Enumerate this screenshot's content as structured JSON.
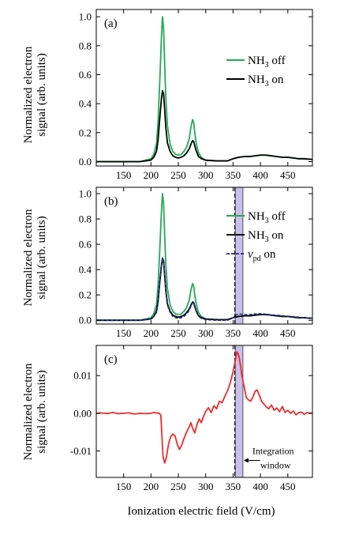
{
  "figure": {
    "xlabel": "Ionization electric field (V/cm)",
    "ylabel_line1": "Normalized electron",
    "ylabel_line2": "signal (arb. units)"
  },
  "colors": {
    "nh3_off": "#22aa55",
    "nh3_on": "#000000",
    "vpd_on": "#2a2a8c",
    "difference": "#ee2c2c",
    "window_fill": "#c8c0ea",
    "window_line": "#333333"
  },
  "chart_data": [
    {
      "type": "line",
      "panel_label": "(a)",
      "xlim": [
        100,
        495
      ],
      "ylim": [
        -0.03,
        1.05
      ],
      "x_ticks": [
        150,
        200,
        250,
        300,
        350,
        400,
        450
      ],
      "x_tick_labels": [
        "150",
        "200",
        "250",
        "300",
        "350",
        "400",
        "450"
      ],
      "y_ticks": [
        0.0,
        0.2,
        0.4,
        0.6,
        0.8,
        1.0
      ],
      "y_tick_labels": [
        "0.0",
        "0.2",
        "0.4",
        "0.6",
        "0.8",
        "1.0"
      ],
      "legend_position": "top-right",
      "series": [
        {
          "name": "NH3 off",
          "name_main": "NH",
          "name_sub": "3",
          "name_tail": " off",
          "color": "#22aa55",
          "x": [
            100,
            180,
            200,
            205,
            210,
            213,
            216,
            219,
            221,
            223,
            225,
            227,
            230,
            235,
            240,
            245,
            250,
            255,
            260,
            265,
            270,
            273,
            276,
            278,
            280,
            283,
            287,
            292,
            300,
            320,
            340,
            350,
            360,
            370,
            380,
            390,
            400,
            410,
            420,
            430,
            440,
            450,
            460,
            470,
            480,
            495
          ],
          "y": [
            0.0,
            0.0,
            0.02,
            0.05,
            0.12,
            0.28,
            0.55,
            0.85,
            1.0,
            0.92,
            0.68,
            0.45,
            0.25,
            0.12,
            0.07,
            0.05,
            0.045,
            0.05,
            0.07,
            0.1,
            0.16,
            0.24,
            0.29,
            0.27,
            0.2,
            0.12,
            0.06,
            0.03,
            0.01,
            0.005,
            0.005,
            0.02,
            0.03,
            0.035,
            0.035,
            0.04,
            0.045,
            0.045,
            0.04,
            0.035,
            0.03,
            0.03,
            0.025,
            0.02,
            0.02,
            0.015
          ]
        },
        {
          "name": "NH3 on",
          "name_main": "NH",
          "name_sub": "3",
          "name_tail": " on",
          "color": "#000000",
          "x": [
            100,
            180,
            200,
            205,
            210,
            213,
            216,
            219,
            221,
            223,
            225,
            227,
            230,
            235,
            240,
            245,
            250,
            255,
            260,
            265,
            270,
            273,
            276,
            278,
            280,
            283,
            287,
            292,
            300,
            320,
            340,
            350,
            360,
            370,
            380,
            390,
            400,
            410,
            420,
            430,
            440,
            450,
            460,
            470,
            480,
            495
          ],
          "y": [
            0.0,
            0.0,
            0.01,
            0.03,
            0.07,
            0.15,
            0.3,
            0.43,
            0.49,
            0.47,
            0.36,
            0.24,
            0.13,
            0.07,
            0.04,
            0.03,
            0.025,
            0.03,
            0.04,
            0.06,
            0.09,
            0.12,
            0.145,
            0.14,
            0.11,
            0.07,
            0.035,
            0.02,
            0.01,
            0.005,
            0.005,
            0.02,
            0.03,
            0.035,
            0.035,
            0.04,
            0.045,
            0.045,
            0.04,
            0.035,
            0.03,
            0.03,
            0.025,
            0.02,
            0.02,
            0.015
          ]
        }
      ]
    },
    {
      "type": "line",
      "panel_label": "(b)",
      "xlim": [
        100,
        495
      ],
      "ylim": [
        -0.03,
        1.05
      ],
      "x_ticks": [
        150,
        200,
        250,
        300,
        350,
        400,
        450
      ],
      "x_tick_labels": [
        "150",
        "200",
        "250",
        "300",
        "350",
        "400",
        "450"
      ],
      "y_ticks": [
        0.0,
        0.2,
        0.4,
        0.6,
        0.8,
        1.0
      ],
      "y_tick_labels": [
        "0.0",
        "0.2",
        "0.4",
        "0.6",
        "0.8",
        "1.0"
      ],
      "legend_position": "right",
      "window": {
        "x_start": 354,
        "x_end": 368,
        "dashed_line_x": 353
      },
      "series": [
        {
          "name": "NH3 off",
          "name_main": "NH",
          "name_sub": "3",
          "name_tail": " off",
          "color": "#22aa55",
          "dashed": false,
          "x": [
            100,
            180,
            200,
            205,
            210,
            213,
            216,
            219,
            221,
            223,
            225,
            227,
            230,
            235,
            240,
            245,
            250,
            255,
            260,
            265,
            270,
            273,
            276,
            278,
            280,
            283,
            287,
            292,
            300,
            320,
            340,
            350,
            360,
            370,
            380,
            390,
            400,
            410,
            420,
            430,
            440,
            450,
            460,
            470,
            480,
            495
          ],
          "y": [
            0.0,
            0.0,
            0.02,
            0.05,
            0.12,
            0.28,
            0.55,
            0.85,
            1.0,
            0.92,
            0.68,
            0.45,
            0.25,
            0.12,
            0.07,
            0.05,
            0.045,
            0.05,
            0.07,
            0.1,
            0.16,
            0.24,
            0.29,
            0.27,
            0.2,
            0.12,
            0.06,
            0.03,
            0.01,
            0.005,
            0.005,
            0.02,
            0.03,
            0.035,
            0.035,
            0.04,
            0.045,
            0.045,
            0.04,
            0.035,
            0.03,
            0.03,
            0.025,
            0.02,
            0.02,
            0.015
          ]
        },
        {
          "name": "NH3 on",
          "name_main": "NH",
          "name_sub": "3",
          "name_tail": " on",
          "color": "#000000",
          "dashed": false,
          "x": [
            100,
            180,
            200,
            205,
            210,
            213,
            216,
            219,
            221,
            223,
            225,
            227,
            230,
            235,
            240,
            245,
            250,
            255,
            260,
            265,
            270,
            273,
            276,
            278,
            280,
            283,
            287,
            292,
            300,
            320,
            340,
            350,
            360,
            370,
            380,
            390,
            400,
            410,
            420,
            430,
            440,
            450,
            460,
            470,
            480,
            495
          ],
          "y": [
            0.0,
            0.0,
            0.01,
            0.03,
            0.07,
            0.15,
            0.3,
            0.43,
            0.49,
            0.47,
            0.36,
            0.24,
            0.13,
            0.07,
            0.04,
            0.03,
            0.025,
            0.03,
            0.04,
            0.06,
            0.09,
            0.12,
            0.145,
            0.14,
            0.11,
            0.07,
            0.035,
            0.02,
            0.01,
            0.005,
            0.005,
            0.02,
            0.03,
            0.035,
            0.035,
            0.04,
            0.045,
            0.045,
            0.04,
            0.035,
            0.03,
            0.03,
            0.025,
            0.02,
            0.02,
            0.015
          ]
        },
        {
          "name": "vpd on",
          "name_main": "v",
          "name_sub": "pd",
          "name_tail": " on",
          "color": "#2a2a8c",
          "dashed": true,
          "x": [
            100,
            180,
            200,
            205,
            210,
            213,
            216,
            219,
            221,
            223,
            225,
            227,
            230,
            235,
            240,
            245,
            250,
            255,
            260,
            265,
            270,
            273,
            276,
            278,
            280,
            283,
            287,
            292,
            300,
            320,
            340,
            350,
            355,
            360,
            365,
            370,
            380,
            390,
            400,
            410,
            420,
            430,
            440,
            450,
            460,
            470,
            480,
            495
          ],
          "y": [
            0.0,
            0.0,
            0.01,
            0.03,
            0.06,
            0.14,
            0.29,
            0.42,
            0.49,
            0.47,
            0.35,
            0.23,
            0.12,
            0.06,
            0.03,
            0.02,
            0.015,
            0.02,
            0.03,
            0.05,
            0.08,
            0.11,
            0.14,
            0.135,
            0.1,
            0.065,
            0.03,
            0.015,
            0.005,
            0.0,
            0.0,
            0.02,
            0.04,
            0.05,
            0.048,
            0.045,
            0.045,
            0.05,
            0.052,
            0.048,
            0.042,
            0.04,
            0.035,
            0.032,
            0.028,
            0.024,
            0.02,
            0.015
          ]
        }
      ]
    },
    {
      "type": "line",
      "panel_label": "(c)",
      "xlim": [
        100,
        495
      ],
      "ylim": [
        -0.017,
        0.018
      ],
      "x_ticks": [
        150,
        200,
        250,
        300,
        350,
        400,
        450
      ],
      "x_tick_labels": [
        "150",
        "200",
        "250",
        "300",
        "350",
        "400",
        "450"
      ],
      "y_ticks": [
        -0.01,
        0.0,
        0.01
      ],
      "y_tick_labels": [
        "-0.01",
        "0.00",
        "0.01"
      ],
      "window": {
        "x_start": 354,
        "x_end": 368,
        "dashed_line_x": 353
      },
      "annotation": {
        "line1": "Integration",
        "line2": "window",
        "arrow_to_x": 368,
        "arrow_y": -0.0125
      },
      "series": [
        {
          "name": "",
          "color": "#ee2c2c",
          "x": [
            100,
            110,
            120,
            130,
            140,
            150,
            160,
            170,
            180,
            190,
            200,
            205,
            210,
            215,
            218,
            220,
            222,
            225,
            228,
            232,
            236,
            240,
            244,
            248,
            252,
            256,
            260,
            265,
            270,
            273,
            276,
            280,
            284,
            288,
            292,
            296,
            300,
            305,
            310,
            315,
            320,
            325,
            330,
            335,
            340,
            345,
            350,
            354,
            357,
            360,
            363,
            366,
            370,
            374,
            378,
            382,
            386,
            390,
            394,
            398,
            402,
            406,
            410,
            415,
            420,
            425,
            430,
            435,
            440,
            445,
            450,
            455,
            460,
            465,
            470,
            475,
            480,
            485,
            490,
            495
          ],
          "y": [
            0.0,
            0.0001,
            -0.0001,
            0.0002,
            -0.0001,
            0.0,
            0.0001,
            -0.0002,
            0.0,
            -0.0001,
            0.0,
            0.0002,
            0.0001,
            0.0,
            -0.0005,
            -0.006,
            -0.0115,
            -0.0132,
            -0.0118,
            -0.0082,
            -0.0062,
            -0.0055,
            -0.006,
            -0.0082,
            -0.0096,
            -0.0085,
            -0.0068,
            -0.005,
            -0.0035,
            -0.0025,
            -0.004,
            -0.0052,
            -0.003,
            -0.0015,
            -0.0025,
            -0.0008,
            0.0005,
            0.0015,
            0.0002,
            0.002,
            0.0012,
            0.0032,
            0.0028,
            0.0045,
            0.006,
            0.0082,
            0.011,
            0.014,
            0.0163,
            0.0155,
            0.0132,
            0.01,
            0.0072,
            0.0042,
            0.0036,
            0.0032,
            0.0042,
            0.0058,
            0.0062,
            0.0048,
            0.0032,
            0.0025,
            0.0018,
            0.0012,
            0.0022,
            0.0008,
            0.0014,
            0.0004,
            0.0018,
            0.0002,
            0.0008,
            0.0,
            0.0006,
            -0.0004,
            0.0002,
            0.0003,
            -0.0003,
            0.0002,
            0.0,
            0.0001
          ]
        }
      ]
    }
  ]
}
